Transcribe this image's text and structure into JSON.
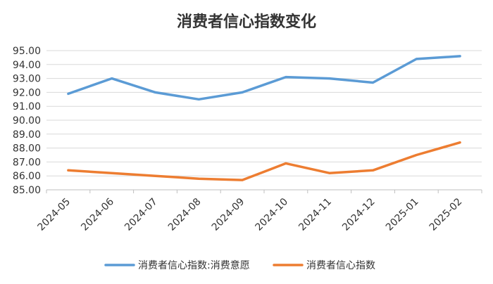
{
  "chart_data": {
    "type": "line",
    "title": "消费者信心指数变化",
    "categories": [
      "2024-05",
      "2024-06",
      "2024-07",
      "2024-08",
      "2024-09",
      "2024-10",
      "2024-11",
      "2024-12",
      "2025-01",
      "2025-02"
    ],
    "series": [
      {
        "name": "消费者信心指数:消费意愿",
        "color": "#5b9bd5",
        "values": [
          91.9,
          93.0,
          92.0,
          91.5,
          92.0,
          93.1,
          93.0,
          92.7,
          94.4,
          94.6
        ]
      },
      {
        "name": "消费者信心指数",
        "color": "#ed7d31",
        "values": [
          86.4,
          86.2,
          86.0,
          85.8,
          85.7,
          86.9,
          86.2,
          86.4,
          87.5,
          88.4
        ]
      }
    ],
    "yticks": [
      "95.00",
      "94.00",
      "93.00",
      "92.00",
      "91.00",
      "90.00",
      "89.00",
      "88.00",
      "87.00",
      "86.00",
      "85.00"
    ],
    "ylim": [
      85,
      95
    ],
    "grid": true,
    "legend_position": "bottom"
  }
}
